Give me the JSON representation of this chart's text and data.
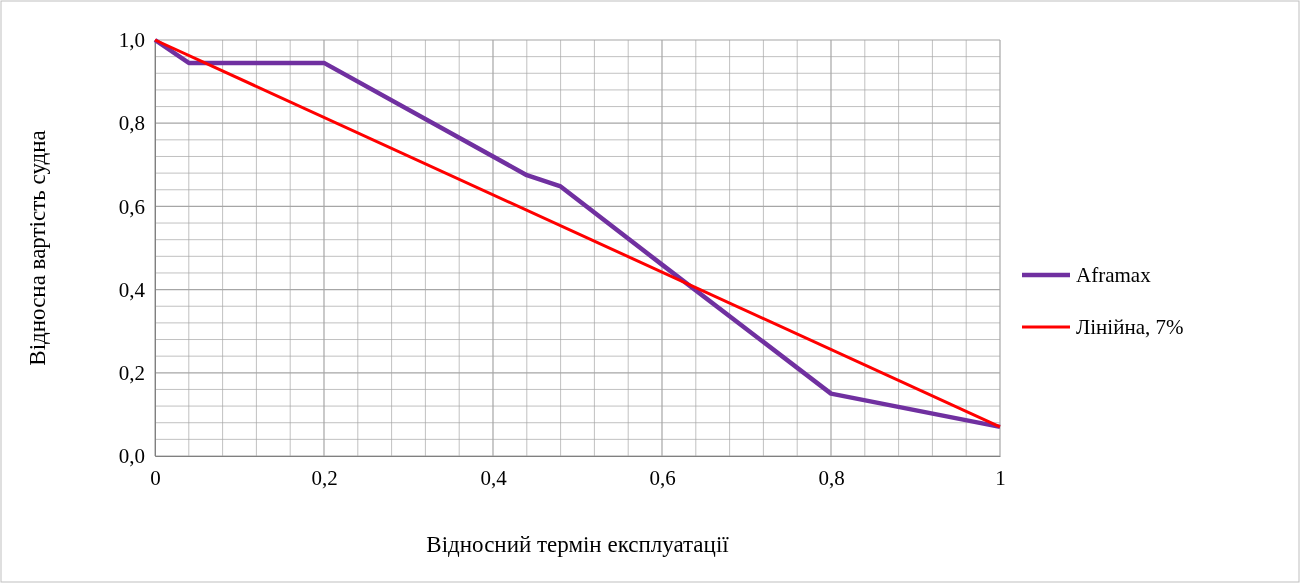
{
  "chart_data": {
    "type": "line",
    "xlabel": "Відносний термін експлуатації",
    "ylabel": "Відносна вартість судна",
    "xlim": [
      0,
      1
    ],
    "ylim": [
      0,
      1
    ],
    "xticks": [
      {
        "value": 0,
        "label": "0"
      },
      {
        "value": 0.04,
        "label": null
      },
      {
        "value": 0.08,
        "label": null
      },
      {
        "value": 0.12,
        "label": null
      },
      {
        "value": 0.16,
        "label": null
      },
      {
        "value": 0.2,
        "label": "0,2"
      },
      {
        "value": 0.24,
        "label": null
      },
      {
        "value": 0.28,
        "label": null
      },
      {
        "value": 0.32,
        "label": null
      },
      {
        "value": 0.36,
        "label": null
      },
      {
        "value": 0.4,
        "label": "0,4"
      },
      {
        "value": 0.44,
        "label": null
      },
      {
        "value": 0.48,
        "label": null
      },
      {
        "value": 0.52,
        "label": null
      },
      {
        "value": 0.56,
        "label": null
      },
      {
        "value": 0.6,
        "label": "0,6"
      },
      {
        "value": 0.64,
        "label": null
      },
      {
        "value": 0.68,
        "label": null
      },
      {
        "value": 0.72,
        "label": null
      },
      {
        "value": 0.76,
        "label": null
      },
      {
        "value": 0.8,
        "label": "0,8"
      },
      {
        "value": 0.84,
        "label": null
      },
      {
        "value": 0.88,
        "label": null
      },
      {
        "value": 0.92,
        "label": null
      },
      {
        "value": 0.96,
        "label": null
      },
      {
        "value": 1,
        "label": "1"
      }
    ],
    "yticks": [
      {
        "value": 0,
        "label": "0,0"
      },
      {
        "value": 0.04,
        "label": null
      },
      {
        "value": 0.08,
        "label": null
      },
      {
        "value": 0.12,
        "label": null
      },
      {
        "value": 0.16,
        "label": null
      },
      {
        "value": 0.2,
        "label": "0,2"
      },
      {
        "value": 0.24,
        "label": null
      },
      {
        "value": 0.28,
        "label": null
      },
      {
        "value": 0.32,
        "label": null
      },
      {
        "value": 0.36,
        "label": null
      },
      {
        "value": 0.4,
        "label": "0,4"
      },
      {
        "value": 0.44,
        "label": null
      },
      {
        "value": 0.48,
        "label": null
      },
      {
        "value": 0.52,
        "label": null
      },
      {
        "value": 0.56,
        "label": null
      },
      {
        "value": 0.6,
        "label": "0,6"
      },
      {
        "value": 0.64,
        "label": null
      },
      {
        "value": 0.68,
        "label": null
      },
      {
        "value": 0.72,
        "label": null
      },
      {
        "value": 0.76,
        "label": null
      },
      {
        "value": 0.8,
        "label": "0,8"
      },
      {
        "value": 0.84,
        "label": null
      },
      {
        "value": 0.88,
        "label": null
      },
      {
        "value": 0.92,
        "label": null
      },
      {
        "value": 0.96,
        "label": null
      },
      {
        "value": 1,
        "label": "1,0"
      }
    ],
    "grid": true,
    "legend": "right",
    "marker": "none",
    "line_style": "solid",
    "series": [
      {
        "name": "Aframax",
        "color": "#7030a0",
        "x": [
          0,
          0.04,
          0.2,
          0.44,
          0.48,
          0.6,
          0.8,
          1
        ],
        "values": [
          1,
          0.945,
          0.945,
          0.675,
          0.648,
          0.46,
          0.15,
          0.07
        ]
      },
      {
        "name": "Лінійна, 7%",
        "color": "#ff0000",
        "x": [
          0,
          1
        ],
        "values": [
          1,
          0.07
        ]
      }
    ]
  }
}
